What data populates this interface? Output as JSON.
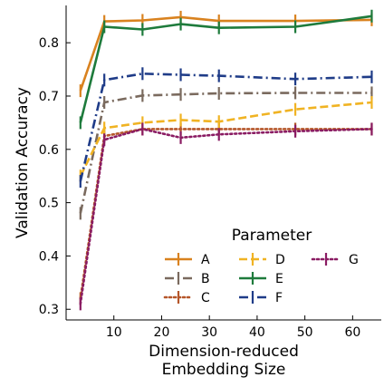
{
  "chart_data": {
    "type": "line",
    "xlabel_lines": [
      "Dimension-reduced",
      "Embedding Size"
    ],
    "ylabel": "Validation Accuracy",
    "x": [
      3,
      8,
      16,
      24,
      32,
      48,
      64
    ],
    "x_ticks": [
      10,
      20,
      30,
      40,
      50,
      60
    ],
    "y_ticks": [
      0.3,
      0.4,
      0.5,
      0.6,
      0.7,
      0.8
    ],
    "xlim": [
      0,
      66
    ],
    "ylim": [
      0.28,
      0.87
    ],
    "grid": false,
    "legend": {
      "title": "Parameter",
      "position": "lower-right",
      "columns": 3
    },
    "series": [
      {
        "name": "A",
        "color": "#D9821F",
        "dash": "solid",
        "values": [
          0.71,
          0.84,
          0.842,
          0.848,
          0.841,
          0.841,
          0.843
        ]
      },
      {
        "name": "B",
        "color": "#7A6A5E",
        "dash": "dashdot",
        "values": [
          0.48,
          0.688,
          0.701,
          0.703,
          0.705,
          0.706,
          0.706
        ]
      },
      {
        "name": "C",
        "color": "#B5562A",
        "dash": "dot",
        "values": [
          0.32,
          0.625,
          0.638,
          0.638,
          0.638,
          0.638,
          0.638
        ]
      },
      {
        "name": "D",
        "color": "#F0B323",
        "dash": "dash",
        "values": [
          0.55,
          0.64,
          0.65,
          0.655,
          0.652,
          0.675,
          0.688
        ]
      },
      {
        "name": "E",
        "color": "#1E7B3C",
        "dash": "solid",
        "values": [
          0.65,
          0.83,
          0.825,
          0.835,
          0.828,
          0.83,
          0.85
        ]
      },
      {
        "name": "F",
        "color": "#1F3C88",
        "dash": "dashdot",
        "values": [
          0.54,
          0.73,
          0.742,
          0.74,
          0.738,
          0.732,
          0.736
        ]
      },
      {
        "name": "G",
        "color": "#8A1C63",
        "dash": "dot",
        "values": [
          0.31,
          0.618,
          0.638,
          0.622,
          0.628,
          0.634,
          0.638
        ]
      }
    ]
  }
}
